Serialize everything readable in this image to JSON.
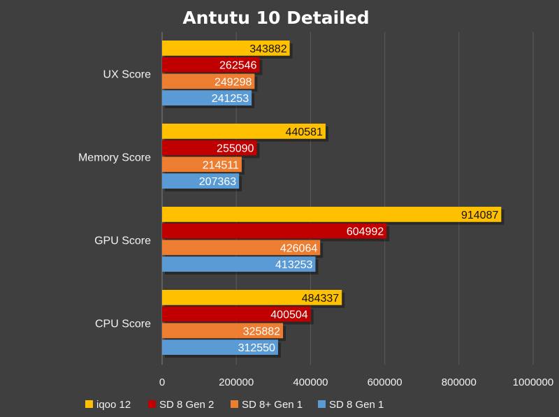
{
  "chart_data": {
    "type": "bar",
    "orientation": "horizontal",
    "title": "Antutu 10 Detailed",
    "categories": [
      "UX Score",
      "Memory Score",
      "GPU Score",
      "CPU Score"
    ],
    "series": [
      {
        "name": "iqoo 12",
        "color": "#ffc000",
        "label_color": "#111111",
        "values": [
          343882,
          440581,
          914087,
          484337
        ]
      },
      {
        "name": "SD 8 Gen 2",
        "color": "#c00000",
        "label_color": "#ffffff",
        "values": [
          262546,
          255090,
          604992,
          400504
        ]
      },
      {
        "name": "SD 8+ Gen 1",
        "color": "#ed7d31",
        "label_color": "#ffffff",
        "values": [
          249298,
          214511,
          426064,
          325882
        ]
      },
      {
        "name": "SD 8 Gen 1",
        "color": "#5b9bd5",
        "label_color": "#ffffff",
        "values": [
          241253,
          207363,
          413253,
          312550
        ]
      }
    ],
    "xlim": [
      0,
      1000000
    ],
    "xticks": [
      "0",
      "200000",
      "400000",
      "600000",
      "800000",
      "1000000"
    ],
    "grid": true,
    "legend_position": "bottom",
    "colors": {
      "background": "#3f3f3f",
      "grid": "#5c5c5c",
      "text": "#f2f2f2"
    }
  }
}
